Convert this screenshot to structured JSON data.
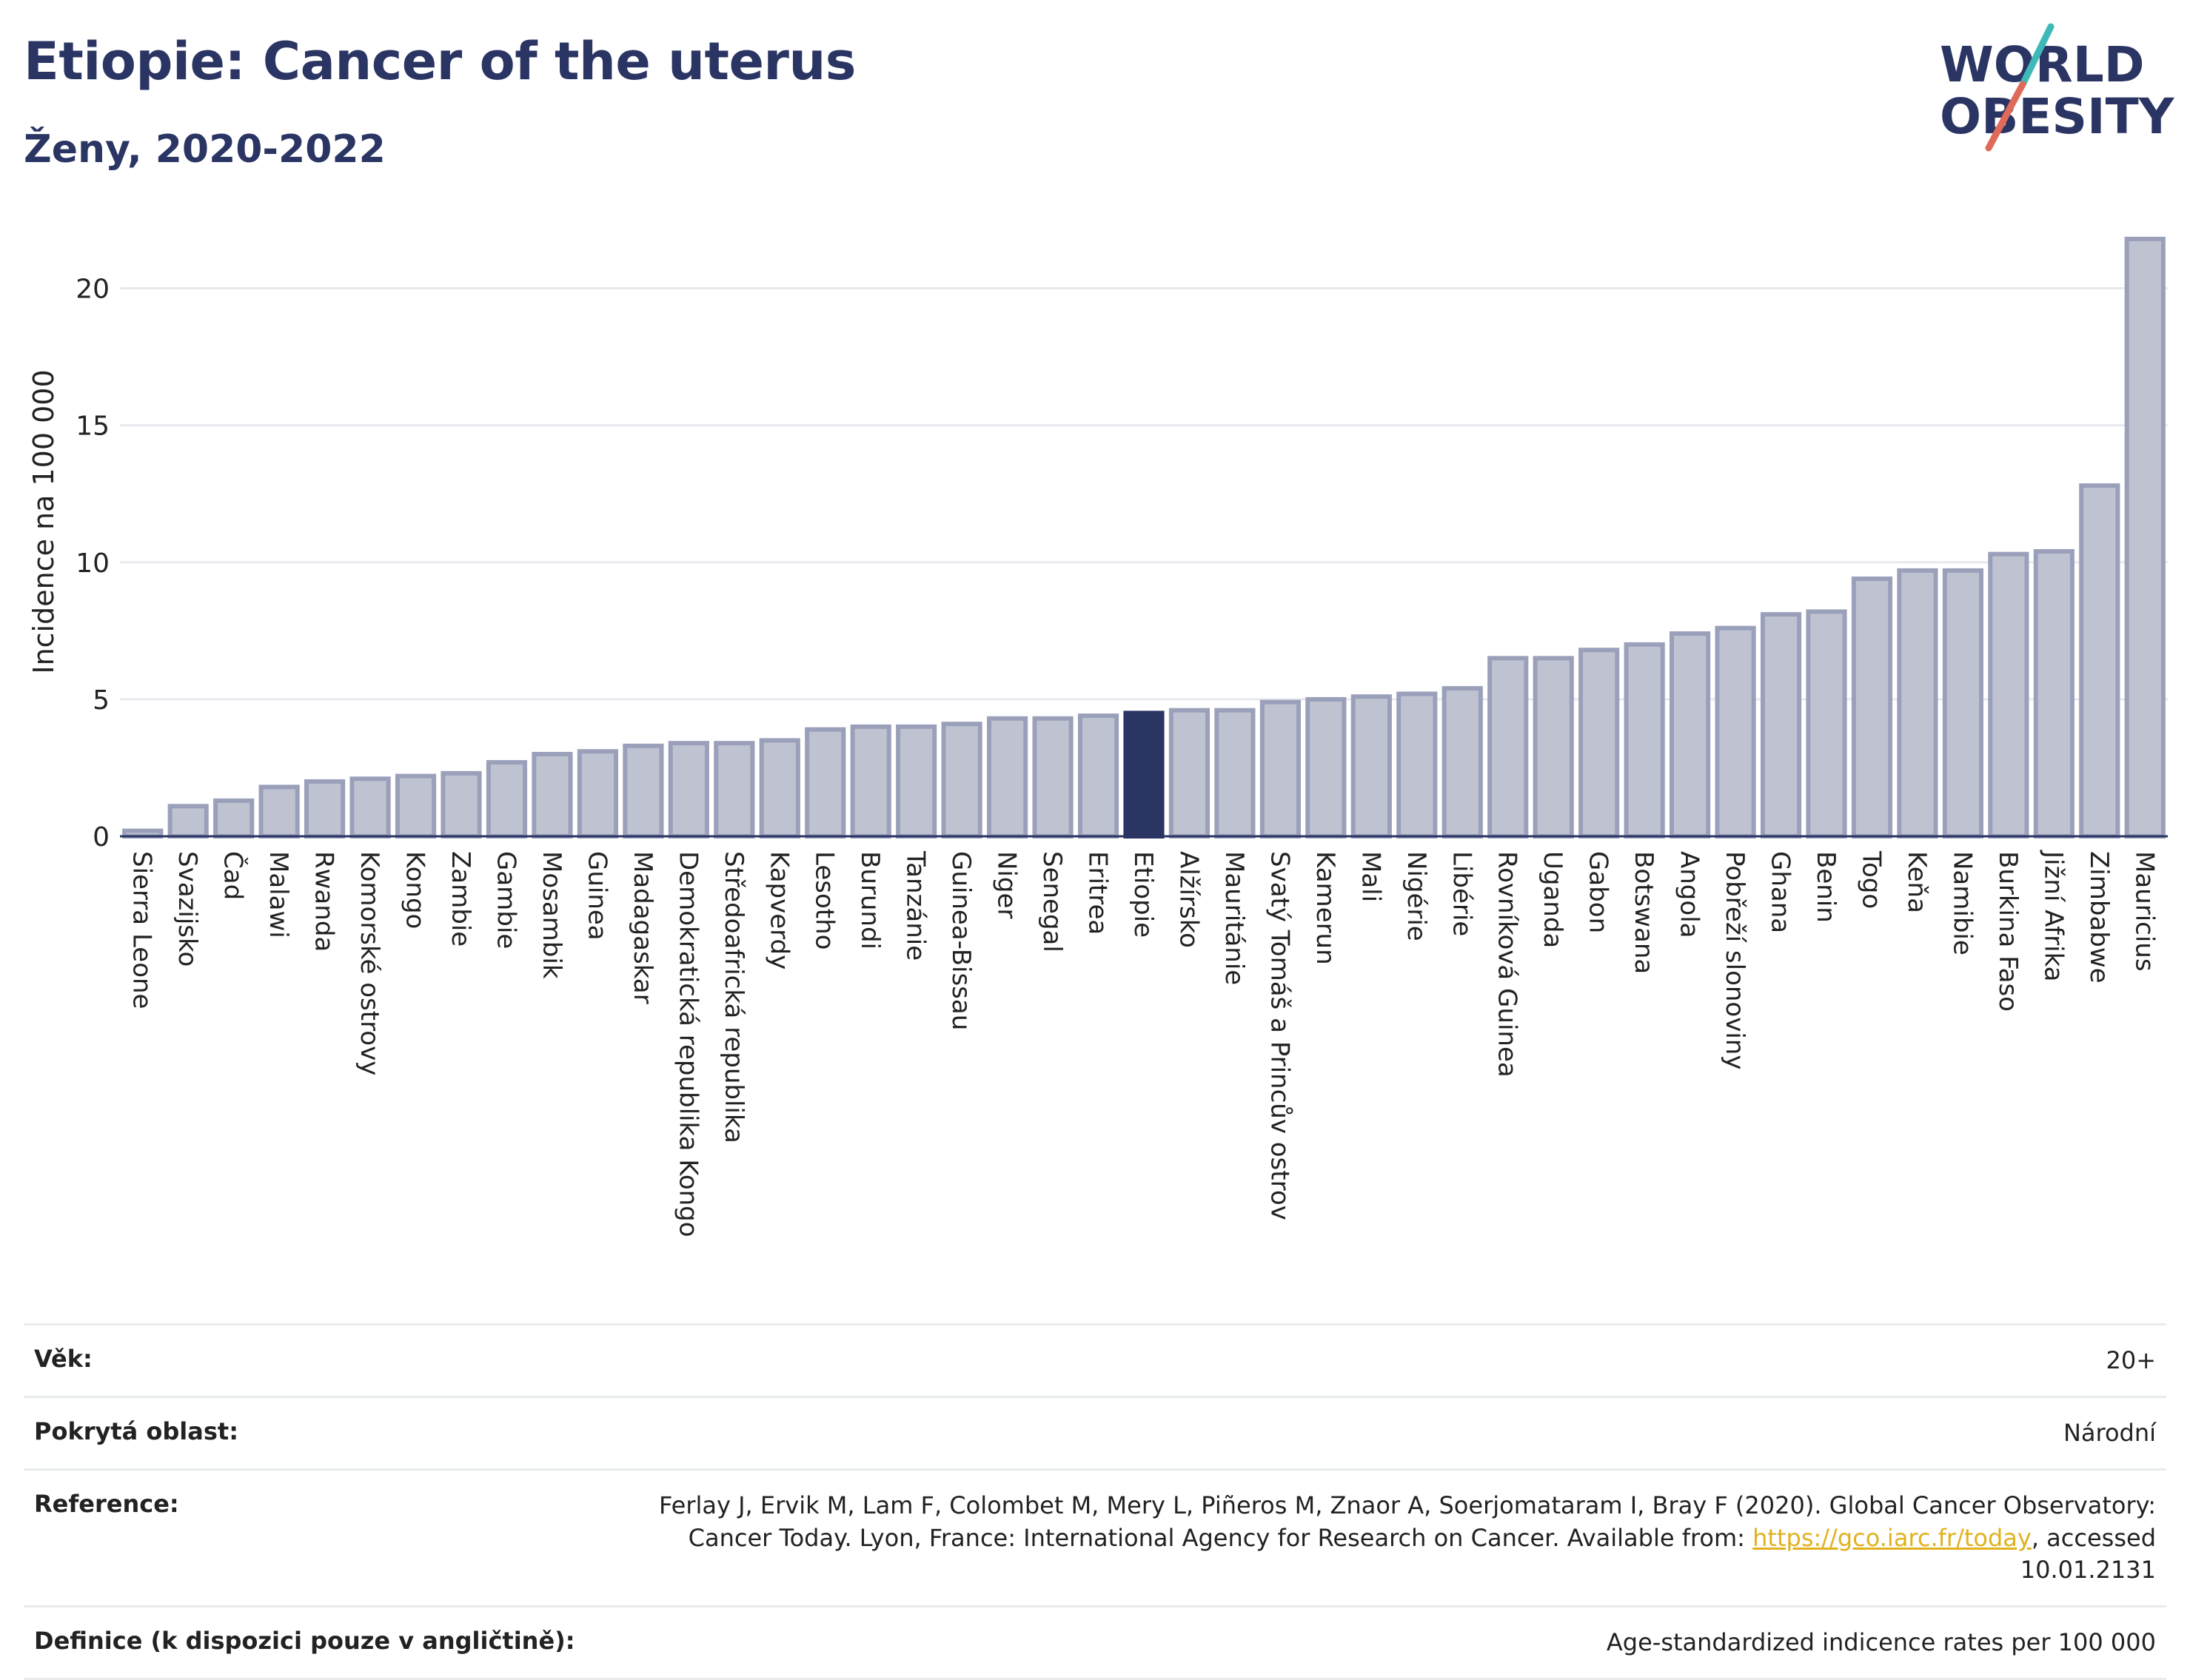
{
  "header": {
    "title": "Etiopie: Cancer of the uterus",
    "subtitle": "Ženy, 2020-2022"
  },
  "logo": {
    "line1": "WORLD",
    "line2": "OBESITY"
  },
  "colors": {
    "bar_fill": "#bfc3d1",
    "bar_stroke": "#9aa0ba",
    "highlight": "#2b3563",
    "title": "#2b3563",
    "grid": "#e6e9ee",
    "logo_teal": "#3fb8b8",
    "logo_coral": "#e06a5a"
  },
  "chart_data": {
    "type": "bar",
    "ylabel": "Incidence na 100 000",
    "ylim": [
      0,
      22.5
    ],
    "yticks": [
      0,
      5,
      10,
      15,
      20
    ],
    "grid": true,
    "highlight": "Etiopie",
    "categories": [
      "Sierra Leone",
      "Svazijsko",
      "Čad",
      "Malawi",
      "Rwanda",
      "Komorské ostrovy",
      "Kongo",
      "Zambie",
      "Gambie",
      "Mosambik",
      "Guinea",
      "Madagaskar",
      "Demokratická republika Kongo",
      "Středoafrická republika",
      "Kapverdy",
      "Lesotho",
      "Burundi",
      "Tanzánie",
      "Guinea-Bissau",
      "Niger",
      "Senegal",
      "Eritrea",
      "Etiopie",
      "Alžírsko",
      "Mauritánie",
      "Svatý Tomáš a Princův ostrov",
      "Kamerun",
      "Mali",
      "Nigérie",
      "Libérie",
      "Rovníková Guinea",
      "Uganda",
      "Gabon",
      "Botswana",
      "Angola",
      "Pobřeží slonoviny",
      "Ghana",
      "Benin",
      "Togo",
      "Keňa",
      "Namibie",
      "Burkina Faso",
      "Jižní Afrika",
      "Zimbabwe",
      "Mauricius"
    ],
    "values": [
      0.2,
      1.1,
      1.3,
      1.8,
      2.0,
      2.1,
      2.2,
      2.3,
      2.7,
      3.0,
      3.1,
      3.3,
      3.4,
      3.4,
      3.5,
      3.9,
      4.0,
      4.0,
      4.1,
      4.3,
      4.3,
      4.4,
      4.5,
      4.6,
      4.6,
      4.9,
      5.0,
      5.1,
      5.2,
      5.4,
      6.5,
      6.5,
      6.8,
      7.0,
      7.4,
      7.6,
      8.1,
      8.2,
      9.4,
      9.7,
      9.7,
      10.3,
      10.4,
      12.8,
      21.8
    ]
  },
  "info": {
    "age_label": "Věk:",
    "age_value": "20+",
    "area_label": "Pokrytá oblast:",
    "area_value": "Národní",
    "reference_label": "Reference:",
    "reference_text": "Ferlay J, Ervik M, Lam F, Colombet M, Mery L, Piñeros M, Znaor A, Soerjomataram I, Bray F (2020). Global Cancer Observatory: Cancer Today. Lyon, France: International Agency for Research on Cancer. Available from: ",
    "reference_link": "https://gco.iarc.fr/today",
    "reference_suffix": ", accessed 10.01.2131",
    "definition_label": "Definice (k dispozici pouze v angličtině):",
    "definition_value": "Age-standardized indicence rates per 100 000"
  }
}
